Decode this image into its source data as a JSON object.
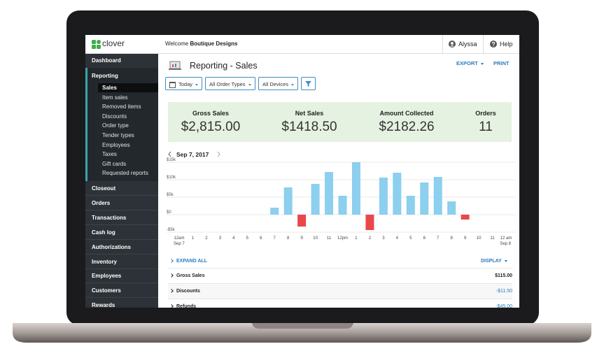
{
  "header": {
    "logo": "clover",
    "welcome": "Welcome",
    "store": "Boutique Designs",
    "user": "Alyssa",
    "help": "Help"
  },
  "sidebar": {
    "top": [
      "Dashboard"
    ],
    "section": {
      "title": "Reporting",
      "items": [
        "Sales",
        "Item sales",
        "Removed items",
        "Discounts",
        "Order type",
        "Tender types",
        "Employees",
        "Taxes",
        "Gift cards",
        "Requested reports"
      ]
    },
    "items": [
      "Closeout",
      "Orders",
      "Transactions",
      "Cash log",
      "Authorizations",
      "Inventory",
      "Employees",
      "Customers",
      "Rewards"
    ]
  },
  "page": {
    "title": "Reporting - Sales",
    "export": "EXPORT",
    "print": "PRINT",
    "date": "Sep 7, 2017"
  },
  "filters": [
    "Today",
    "All Order Types",
    "All Devices"
  ],
  "summary": [
    {
      "label": "Gross Sales",
      "value": "$2,815.00"
    },
    {
      "label": "Net Sales",
      "value": "$1418.50"
    },
    {
      "label": "Amount Collected",
      "value": "$2182.26"
    },
    {
      "label": "Orders",
      "value": "11"
    }
  ],
  "chart_data": {
    "type": "bar",
    "categories": [
      "12am",
      "1",
      "2",
      "3",
      "4",
      "5",
      "6",
      "7",
      "8",
      "9",
      "10",
      "11",
      "12pm",
      "1",
      "2",
      "3",
      "4",
      "5",
      "6",
      "7",
      "8",
      "9",
      "10",
      "11",
      "12 am"
    ],
    "values": [
      null,
      null,
      null,
      null,
      null,
      null,
      null,
      2000,
      7800,
      -3400,
      8800,
      12200,
      5400,
      15000,
      -4400,
      10600,
      12000,
      5400,
      9200,
      10800,
      3800,
      -1400,
      null,
      null,
      null
    ],
    "x_start_date": "Sep 7",
    "x_end_date": "Sep 8",
    "ylim": [
      -5000,
      15000
    ],
    "yticks": [
      {
        "value": -5000,
        "label": "-$5k"
      },
      {
        "value": 0,
        "label": "$0"
      },
      {
        "value": 5000,
        "label": "$5k"
      },
      {
        "value": 10000,
        "label": "$10k"
      },
      {
        "value": 15000,
        "label": "$15k"
      }
    ],
    "colors": {
      "positive": "#8ccfee",
      "negative": "#e9474b"
    },
    "grid": true
  },
  "table": {
    "expand": "EXPAND ALL",
    "display": "DISPLAY",
    "rows": [
      [
        "Gross Sales",
        "$115.00"
      ],
      [
        "Discounts",
        "-$11.50"
      ],
      [
        "Refunds",
        "-$45.00"
      ]
    ]
  }
}
